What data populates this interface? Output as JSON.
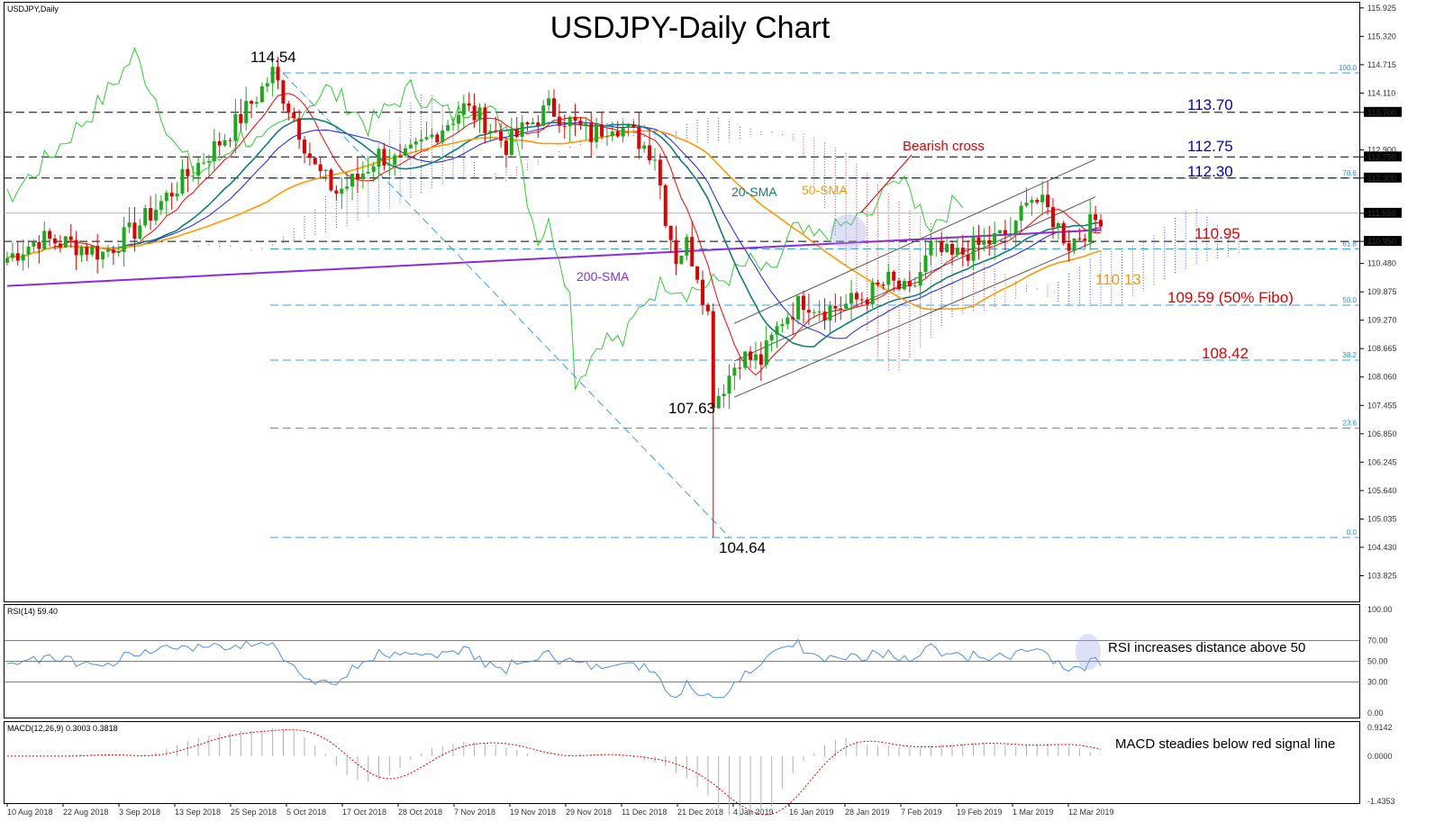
{
  "chart_data": [
    {
      "type": "candlestick",
      "symbol_label": "USDJPY,Daily",
      "title": "USDJPY-Daily Chart",
      "y_ticks": [
        "115.925",
        "115.320",
        "114.715",
        "114.110",
        "113.700",
        "112.900",
        "112.750",
        "112.300",
        "111.550",
        "110.950",
        "110.480",
        "109.875",
        "109.270",
        "108.665",
        "108.060",
        "107.455",
        "106.850",
        "106.245",
        "105.640",
        "105.035",
        "104.430",
        "103.825"
      ],
      "highlighted_ticks": [
        "113.700",
        "112.750",
        "112.300",
        "111.550",
        "110.950"
      ],
      "dates": [
        "10 Aug 2018",
        "22 Aug 2018",
        "3 Sep 2018",
        "13 Sep 2018",
        "25 Sep 2018",
        "5 Oct 2018",
        "17 Oct 2018",
        "28 Oct 2018",
        "7 Nov 2018",
        "19 Nov 2018",
        "29 Nov 2018",
        "11 Dec 2018",
        "21 Dec 2018",
        "4 Jan 2019",
        "16 Jan 2019",
        "28 Jan 2019",
        "7 Feb 2019",
        "19 Feb 2019",
        "1 Mar 2019",
        "12 Mar 2019"
      ],
      "fib_levels": [
        {
          "label": "100.0",
          "value": 114.54
        },
        {
          "label": "78.6",
          "value": 112.3
        },
        {
          "label": "61.8",
          "value": 110.79
        },
        {
          "label": "50.0",
          "value": 109.59
        },
        {
          "label": "38.2",
          "value": 108.42
        },
        {
          "label": "23.6",
          "value": 106.97
        },
        {
          "label": "0.0",
          "value": 104.64
        }
      ],
      "horizontal_levels": [
        113.7,
        112.75,
        112.3,
        110.95
      ],
      "series_labels": [
        "20-SMA",
        "50-SMA",
        "200-SMA"
      ],
      "annotations": [
        {
          "text": "114.54",
          "color": "black"
        },
        {
          "text": "107.63",
          "color": "black"
        },
        {
          "text": "104.64",
          "color": "black"
        },
        {
          "text": "113.70",
          "color": "blue"
        },
        {
          "text": "112.75",
          "color": "blue"
        },
        {
          "text": "112.30",
          "color": "blue"
        },
        {
          "text": "110.95",
          "color": "red"
        },
        {
          "text": "110.13",
          "color": "orange"
        },
        {
          "text": "109.59 (50% Fibo)",
          "color": "red"
        },
        {
          "text": "108.42",
          "color": "red"
        },
        {
          "text": "Bearish cross",
          "color": "red"
        }
      ]
    },
    {
      "type": "line",
      "label": "RSI(14) 59.40",
      "y_ticks": [
        "100.00",
        "70.00",
        "50.00",
        "30.00",
        "0.00"
      ],
      "annotation": "RSI increases distance above 50"
    },
    {
      "type": "histogram",
      "label": "MACD(12,26,9) 0.3003 0.3818",
      "y_ticks": [
        "0.9142",
        "0.0000",
        "-1.4353"
      ],
      "annotation": "MACD steadies below red signal line"
    }
  ],
  "colors": {
    "bull": "#1aaa1a",
    "bear": "#e00000",
    "sma20": "#0e7c7b",
    "sma50": "#ff9900",
    "sma200": "#8a2be2",
    "fib": "#3aa0e0",
    "kumo_bull": "#3050ff",
    "kumo_bear": "#e03030",
    "chikou": "#33cc33",
    "kijun": "#1a1aff",
    "tenkan": "#ff0000",
    "rsi": "#4a90e2",
    "macd_signal": "#e00000",
    "macd_hist": "#b0b0b0"
  }
}
